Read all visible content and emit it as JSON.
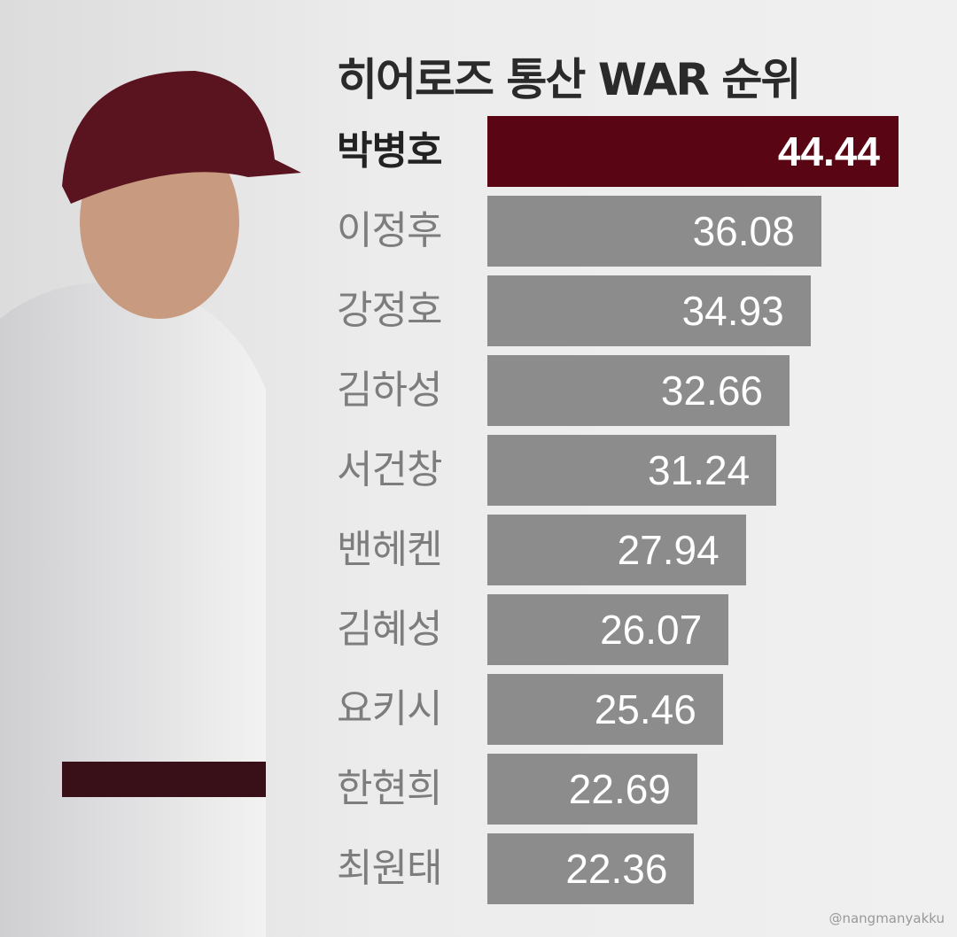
{
  "chart_data": {
    "type": "bar",
    "orientation": "horizontal",
    "title": "히어로즈 통산 WAR 순위",
    "categories": [
      "박병호",
      "이정후",
      "강정호",
      "김하성",
      "서건창",
      "밴헤켄",
      "김혜성",
      "요키시",
      "한현희",
      "최원태"
    ],
    "values": [
      44.44,
      36.08,
      34.93,
      32.66,
      31.24,
      27.94,
      26.07,
      25.46,
      22.69,
      22.36
    ],
    "value_labels": [
      "44.44",
      "36.08",
      "34.93",
      "32.66",
      "31.24",
      "27.94",
      "26.07",
      "25.46",
      "22.69",
      "22.36"
    ],
    "xlim": [
      0,
      44.44
    ],
    "grid": false,
    "highlight_index": 0,
    "colors": {
      "highlight": "#5a0514",
      "default": "#8c8c8c"
    }
  },
  "credit": "@nangmanyakku"
}
